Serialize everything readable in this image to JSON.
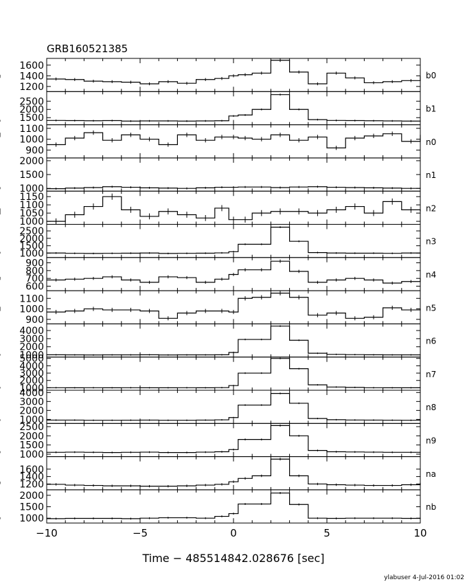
{
  "chart_data": {
    "type": "line",
    "title": "GRB160521385",
    "xlabel": "Time − 485514842.028676 [sec]",
    "footer": "ylabuser   4-Jul-2016 01:02",
    "xlim": [
      -10,
      10
    ],
    "x_ticks": [
      -10,
      -5,
      0,
      5,
      10
    ],
    "bin_edges": [
      -10,
      -9,
      -8,
      -7,
      -6,
      -5,
      -4,
      -3,
      -2,
      -1,
      -0.25,
      0.25,
      1,
      2,
      3,
      4,
      5,
      6,
      7,
      8,
      9,
      10
    ],
    "panels": [
      {
        "name": "b0",
        "ylim": [
          1130,
          1700
        ],
        "ticks": [
          1200,
          1400,
          1600
        ],
        "values": [
          1340,
          1330,
          1300,
          1290,
          1280,
          1250,
          1290,
          1260,
          1330,
          1350,
          1400,
          1420,
          1450,
          1690,
          1470,
          1250,
          1450,
          1360,
          1270,
          1290,
          1310,
          1390
        ]
      },
      {
        "name": "b1",
        "ylim": [
          1150,
          3000
        ],
        "ticks": [
          1500,
          2000,
          2500
        ],
        "values": [
          1330,
          1320,
          1310,
          1320,
          1290,
          1300,
          1300,
          1290,
          1300,
          1310,
          1600,
          1660,
          2000,
          2900,
          2000,
          1380,
          1330,
          1320,
          1310,
          1300,
          1290,
          1310
        ]
      },
      {
        "name": "n0",
        "ylim": [
          840,
          1120
        ],
        "ticks": [
          900,
          1000,
          1100
        ],
        "values": [
          950,
          1010,
          1060,
          990,
          1040,
          1000,
          950,
          1040,
          990,
          1020,
          1020,
          1010,
          1000,
          1040,
          990,
          1020,
          920,
          1010,
          1030,
          1050,
          980,
          1040
        ]
      },
      {
        "name": "n1",
        "ylim": [
          950,
          2050
        ],
        "ticks": [
          1000,
          1500,
          2000
        ],
        "values": [
          990,
          1010,
          1030,
          1060,
          1040,
          1020,
          1010,
          1000,
          1020,
          1040,
          1040,
          1050,
          1050,
          1030,
          1050,
          1060,
          1040,
          1030,
          1020,
          1010,
          1000,
          1010
        ]
      },
      {
        "name": "n2",
        "ylim": [
          990,
          1175
        ],
        "ticks": [
          1000,
          1050,
          1100,
          1150
        ],
        "values": [
          1000,
          1040,
          1090,
          1150,
          1070,
          1030,
          1060,
          1040,
          1020,
          1080,
          1010,
          1010,
          1050,
          1060,
          1060,
          1050,
          1070,
          1090,
          1050,
          1120,
          1070,
          1060
        ]
      },
      {
        "name": "n3",
        "ylim": [
          800,
          2850
        ],
        "ticks": [
          1000,
          1500,
          2000,
          2500
        ],
        "values": [
          1010,
          990,
          980,
          990,
          1000,
          1010,
          980,
          990,
          1000,
          1020,
          1100,
          1600,
          1600,
          2750,
          1800,
          1040,
          1010,
          1000,
          1000,
          990,
          1010,
          1030
        ]
      },
      {
        "name": "n4",
        "ylim": [
          560,
          950
        ],
        "ticks": [
          600,
          700,
          800,
          900
        ],
        "values": [
          680,
          690,
          700,
          720,
          680,
          650,
          720,
          710,
          650,
          690,
          750,
          810,
          810,
          920,
          790,
          650,
          680,
          700,
          680,
          640,
          660,
          700
        ]
      },
      {
        "name": "n5",
        "ylim": [
          870,
          1160
        ],
        "ticks": [
          900,
          1000,
          1100
        ],
        "values": [
          970,
          980,
          1000,
          990,
          990,
          980,
          910,
          960,
          980,
          980,
          970,
          1100,
          1110,
          1150,
          1110,
          940,
          960,
          910,
          920,
          1010,
          990,
          1000
        ]
      },
      {
        "name": "n6",
        "ylim": [
          900,
          4650
        ],
        "ticks": [
          1000,
          2000,
          3000,
          4000
        ],
        "values": [
          1010,
          1000,
          990,
          1000,
          1000,
          1010,
          990,
          1000,
          1000,
          1010,
          1300,
          2900,
          2900,
          4550,
          2800,
          1200,
          1060,
          1030,
          1010,
          1000,
          1000,
          1010
        ]
      },
      {
        "name": "n7",
        "ylim": [
          850,
          5000
        ],
        "ticks": [
          1000,
          2000,
          3000,
          4000,
          5000
        ],
        "values": [
          1010,
          1000,
          1010,
          1000,
          1010,
          1000,
          1000,
          1010,
          1000,
          1020,
          1300,
          3000,
          3000,
          5000,
          3600,
          1400,
          1100,
          1050,
          1010,
          1000,
          1000,
          1010
        ]
      },
      {
        "name": "n8",
        "ylim": [
          700,
          4100
        ],
        "ticks": [
          1000,
          2000,
          3000,
          4000
        ],
        "values": [
          920,
          920,
          900,
          900,
          910,
          920,
          900,
          900,
          920,
          950,
          1200,
          2600,
          2600,
          3900,
          2800,
          1100,
          960,
          930,
          920,
          910,
          900,
          920
        ]
      },
      {
        "name": "n9",
        "ylim": [
          940,
          2600
        ],
        "ticks": [
          1000,
          1500,
          2000,
          2500
        ],
        "values": [
          1100,
          1110,
          1100,
          1090,
          1100,
          1110,
          1090,
          1090,
          1110,
          1130,
          1250,
          1800,
          1800,
          2560,
          2000,
          1200,
          1130,
          1120,
          1110,
          1100,
          1100,
          1110
        ]
      },
      {
        "name": "na",
        "ylim": [
          1080,
          1900
        ],
        "ticks": [
          1200,
          1400,
          1600
        ],
        "values": [
          1190,
          1170,
          1160,
          1150,
          1150,
          1140,
          1140,
          1150,
          1170,
          1190,
          1260,
          1350,
          1420,
          1870,
          1420,
          1200,
          1180,
          1170,
          1160,
          1160,
          1180,
          1230
        ]
      },
      {
        "name": "nb",
        "ylim": [
          850,
          2180
        ],
        "ticks": [
          1000,
          1500,
          2000
        ],
        "values": [
          980,
          990,
          990,
          990,
          980,
          1000,
          1020,
          1020,
          1000,
          1080,
          1200,
          1620,
          1620,
          2100,
          1600,
          1000,
          990,
          1000,
          1000,
          1000,
          990,
          1000
        ]
      }
    ]
  }
}
